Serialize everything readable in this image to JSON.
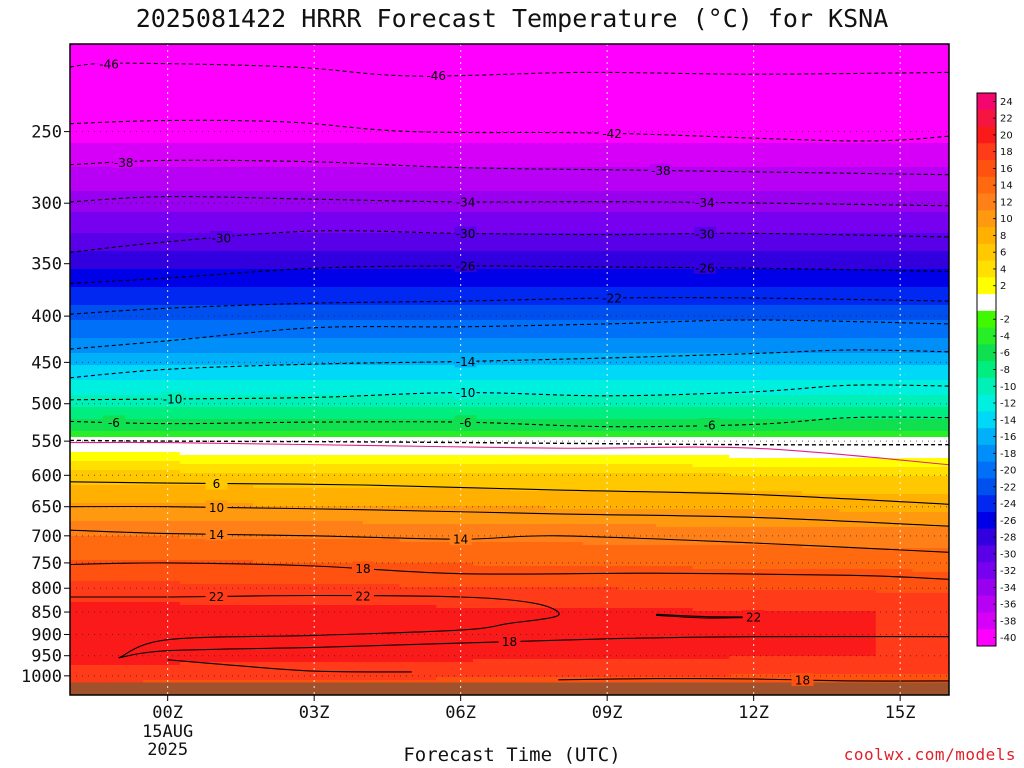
{
  "chart_data": {
    "type": "heatmap",
    "title": "2025081422 HRRR Forecast Temperature (°C) for KSNA",
    "xlabel": "Forecast Time (UTC)",
    "ylabel": "",
    "x_ticks": [
      {
        "label": "00Z",
        "hour": 0
      },
      {
        "label": "03Z",
        "hour": 3
      },
      {
        "label": "06Z",
        "hour": 6
      },
      {
        "label": "09Z",
        "hour": 9
      },
      {
        "label": "12Z",
        "hour": 12
      },
      {
        "label": "15Z",
        "hour": 15
      }
    ],
    "x_date_label_1": "15AUG",
    "x_date_label_2": "2025",
    "xlim": [
      -2,
      16
    ],
    "y_ticks": [
      250,
      300,
      350,
      400,
      450,
      500,
      550,
      600,
      650,
      700,
      750,
      800,
      850,
      900,
      950,
      1000
    ],
    "ylim": [
      1050,
      200
    ],
    "y_scale": "log-pressure",
    "surface_pressure": 1017,
    "colorbar_levels": [
      24,
      22,
      20,
      18,
      16,
      14,
      12,
      10,
      8,
      6,
      4,
      2,
      -2,
      -4,
      -6,
      -8,
      -10,
      -12,
      -14,
      -16,
      -18,
      -20,
      -22,
      -24,
      -26,
      -28,
      -30,
      -32,
      -34,
      -36,
      -38,
      -40
    ],
    "colorbar_colors": {
      "24": "#f5066e",
      "22": "#f51540",
      "20": "#fb1a1a",
      "18": "#ff3b1a",
      "16": "#ff5210",
      "14": "#ff6a10",
      "12": "#ff8018",
      "10": "#ff9a10",
      "8": "#ffb000",
      "6": "#ffc800",
      "4": "#ffe000",
      "2": "#ffff00",
      "0": "#ffffff",
      "-2": "#40f800",
      "-4": "#28ee28",
      "-6": "#10e050",
      "-8": "#00ee80",
      "-10": "#00f0b8",
      "-12": "#00f0e0",
      "-14": "#00d8f8",
      "-16": "#00b0f8",
      "-18": "#008ef8",
      "-20": "#0070f8",
      "-22": "#0050f0",
      "-24": "#0028f0",
      "-26": "#0000e8",
      "-28": "#3200e0",
      "-30": "#5a00e8",
      "-32": "#7800f0",
      "-34": "#9a00f0",
      "-36": "#b800f4",
      "-38": "#d600f8",
      "-40": "#ff00ff"
    },
    "underground_color": "#a0522d",
    "contours": [
      {
        "level": 46,
        "labels": [
          {
            "x": -1.2,
            "text": "46"
          },
          {
            "x": 5.5,
            "text": "46"
          }
        ],
        "points": [
          [
            -2.0,
            212
          ],
          [
            -1.0,
            210
          ],
          [
            2.5,
            212
          ],
          [
            5.0,
            217
          ],
          [
            8.5,
            215
          ],
          [
            12.0,
            216
          ],
          [
            16.0,
            215
          ]
        ]
      },
      {
        "level": 42,
        "labels": [
          {
            "x": 9.1,
            "text": "42"
          }
        ],
        "points": [
          [
            -2.0,
            245
          ],
          [
            0.0,
            243
          ],
          [
            2.5,
            244
          ],
          [
            5.0,
            250
          ],
          [
            9.0,
            251
          ],
          [
            14.0,
            256
          ],
          [
            16.0,
            253
          ]
        ]
      },
      {
        "level": 38,
        "labels": [
          {
            "x": -0.9,
            "text": "38"
          },
          {
            "x": 10.1,
            "text": "38"
          }
        ],
        "points": [
          [
            -2.0,
            272
          ],
          [
            0.0,
            269
          ],
          [
            3.0,
            270
          ],
          [
            6.0,
            274
          ],
          [
            10.0,
            276
          ],
          [
            16.0,
            279
          ]
        ]
      },
      {
        "level": 34,
        "labels": [
          {
            "x": 6.1,
            "text": "34"
          },
          {
            "x": 11.0,
            "text": "34"
          }
        ],
        "points": [
          [
            -2.0,
            299
          ],
          [
            0.0,
            295
          ],
          [
            3.0,
            297
          ],
          [
            6.0,
            299
          ],
          [
            10.0,
            299
          ],
          [
            16.0,
            302
          ]
        ]
      },
      {
        "level": 30,
        "labels": [
          {
            "x": 1.1,
            "text": "30"
          },
          {
            "x": 6.1,
            "text": "30"
          },
          {
            "x": 11.0,
            "text": "30"
          }
        ],
        "points": [
          [
            -2.0,
            340
          ],
          [
            0.0,
            331
          ],
          [
            3.0,
            322
          ],
          [
            6.0,
            324
          ],
          [
            9.0,
            325
          ],
          [
            12.0,
            324
          ],
          [
            16.0,
            327
          ]
        ]
      },
      {
        "level": 26,
        "labels": [
          {
            "x": 6.1,
            "text": "26"
          },
          {
            "x": 11.0,
            "text": "26"
          }
        ],
        "points": [
          [
            -2.0,
            368
          ],
          [
            0.0,
            363
          ],
          [
            3.0,
            354
          ],
          [
            6.0,
            352
          ],
          [
            9.0,
            353
          ],
          [
            12.0,
            354
          ],
          [
            16.0,
            357
          ]
        ]
      },
      {
        "level": 22,
        "labels": [
          {
            "x": 9.1,
            "text": "22"
          }
        ],
        "points": [
          [
            -2.0,
            398
          ],
          [
            0.0,
            392
          ],
          [
            3.0,
            387
          ],
          [
            6.0,
            385
          ],
          [
            9.0,
            382
          ],
          [
            12.0,
            382
          ],
          [
            16.0,
            385
          ]
        ]
      },
      {
        "level": 18,
        "labels": [],
        "points": [
          [
            -2.0,
            435
          ],
          [
            0.0,
            426
          ],
          [
            3.0,
            412
          ],
          [
            6.0,
            411
          ],
          [
            9.0,
            408
          ],
          [
            12.0,
            404
          ],
          [
            16.0,
            408
          ]
        ]
      },
      {
        "level": 14,
        "labels": [
          {
            "x": 6.1,
            "text": "14"
          }
        ],
        "points": [
          [
            -2.0,
            468
          ],
          [
            0.0,
            458
          ],
          [
            3.0,
            452
          ],
          [
            6.0,
            449
          ],
          [
            9.0,
            445
          ],
          [
            12.0,
            440
          ],
          [
            14.0,
            436
          ],
          [
            16.0,
            438
          ]
        ]
      },
      {
        "level": 10,
        "labels": [
          {
            "x": 0.1,
            "text": "10"
          },
          {
            "x": 6.1,
            "text": "10"
          }
        ],
        "points": [
          [
            -2.0,
            495
          ],
          [
            0.0,
            494
          ],
          [
            3.0,
            492
          ],
          [
            6.0,
            486
          ],
          [
            9.0,
            490
          ],
          [
            12.0,
            485
          ],
          [
            14.0,
            477
          ],
          [
            16.0,
            478
          ]
        ]
      },
      {
        "level": 6,
        "labels": [
          {
            "x": -1.1,
            "text": "6"
          },
          {
            "x": 6.1,
            "text": "6"
          },
          {
            "x": 11.1,
            "text": "6"
          }
        ],
        "points": [
          [
            -2.0,
            523
          ],
          [
            0.0,
            526
          ],
          [
            3.0,
            524
          ],
          [
            6.0,
            524
          ],
          [
            9.0,
            530
          ],
          [
            12.0,
            527
          ],
          [
            14.0,
            518
          ],
          [
            16.0,
            518
          ]
        ]
      },
      {
        "level": 0,
        "labels": [],
        "points": [
          [
            -2.0,
            549
          ],
          [
            0.0,
            550
          ],
          [
            4.0,
            551
          ],
          [
            8.0,
            553
          ],
          [
            12.0,
            555
          ],
          [
            16.0,
            555
          ]
        ]
      },
      {
        "level": 2,
        "labels": [],
        "points": [
          [
            -2.0,
            552
          ],
          [
            0.0,
            552
          ],
          [
            4.0,
            556
          ],
          [
            8.0,
            560
          ],
          [
            12.0,
            560
          ],
          [
            16.0,
            584
          ]
        ]
      },
      {
        "level": 6,
        "labels": [
          {
            "x": 1.0,
            "text": "6"
          }
        ],
        "points": [
          [
            -2.0,
            610
          ],
          [
            0.0,
            612
          ],
          [
            4.0,
            615
          ],
          [
            8.0,
            623
          ],
          [
            12.0,
            630
          ],
          [
            16.0,
            646
          ]
        ]
      },
      {
        "level": 10,
        "labels": [
          {
            "x": 1.0,
            "text": "10"
          }
        ],
        "points": [
          [
            -2.0,
            650
          ],
          [
            0.0,
            650
          ],
          [
            4.0,
            655
          ],
          [
            8.0,
            662
          ],
          [
            12.0,
            668
          ],
          [
            16.0,
            683
          ]
        ]
      },
      {
        "level": 14,
        "labels": [
          {
            "x": 1.0,
            "text": "14"
          },
          {
            "x": 6.0,
            "text": "14"
          }
        ],
        "points": [
          [
            -2.0,
            690
          ],
          [
            0.0,
            696
          ],
          [
            3.0,
            700
          ],
          [
            6.0,
            706
          ],
          [
            8.0,
            700
          ],
          [
            12.0,
            713
          ],
          [
            16.0,
            730
          ]
        ]
      },
      {
        "level": 18,
        "labels": [
          {
            "x": 4.0,
            "text": "18"
          }
        ],
        "points": [
          [
            -2.0,
            753
          ],
          [
            0.0,
            750
          ],
          [
            3.0,
            756
          ],
          [
            6.0,
            771
          ],
          [
            10.0,
            770
          ],
          [
            14.0,
            774
          ],
          [
            16.0,
            782
          ]
        ]
      },
      {
        "level": 22,
        "labels": [
          {
            "x": 1.0,
            "text": "22"
          },
          {
            "x": 4.0,
            "text": "22"
          }
        ],
        "points": [
          [
            -2.0,
            818
          ],
          [
            0.0,
            818
          ],
          [
            3.0,
            815
          ],
          [
            6.0,
            818
          ],
          [
            7.5,
            831
          ],
          [
            8.0,
            857
          ],
          [
            7.0,
            875
          ],
          [
            6.0,
            890
          ],
          [
            3.0,
            902
          ],
          [
            0.0,
            912
          ],
          [
            -1.0,
            955
          ]
        ]
      },
      {
        "level": 18,
        "labels": [
          {
            "x": 7.0,
            "text": "18"
          }
        ],
        "points": [
          [
            -1.0,
            955
          ],
          [
            0.0,
            938
          ],
          [
            3.0,
            930
          ],
          [
            6.0,
            920
          ],
          [
            9.0,
            910
          ],
          [
            12.0,
            905
          ],
          [
            16.0,
            905
          ]
        ]
      },
      {
        "level": 22,
        "labels": [
          {
            "x": 12.0,
            "text": "22"
          }
        ],
        "points": [
          [
            10.0,
            855
          ],
          [
            11.0,
            860
          ],
          [
            12.0,
            861
          ],
          [
            11.0,
            863
          ],
          [
            10.0,
            857
          ]
        ]
      },
      {
        "level": 18,
        "labels": [],
        "points": [
          [
            0.0,
            960
          ],
          [
            1.0,
            970
          ],
          [
            3.0,
            988
          ],
          [
            5.0,
            990
          ]
        ]
      },
      {
        "level": 18,
        "labels": [
          {
            "x": 13.0,
            "text": "18"
          }
        ],
        "points": [
          [
            8.0,
            1010
          ],
          [
            10.0,
            1007
          ],
          [
            12.0,
            1008
          ],
          [
            14.0,
            1013
          ],
          [
            16.0,
            1013
          ]
        ]
      }
    ]
  },
  "credit": "coolwx.com/models"
}
